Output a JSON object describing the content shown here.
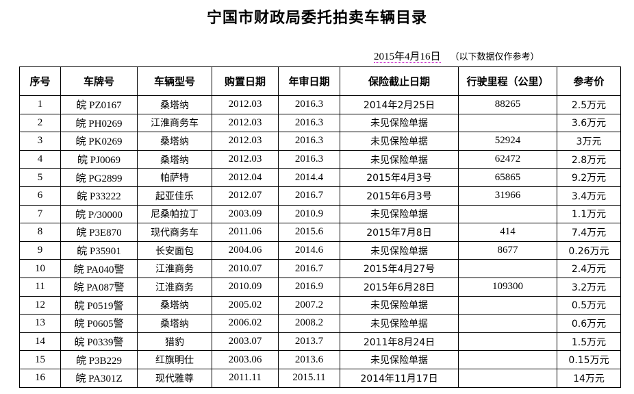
{
  "title": "宁国市财政局委托拍卖车辆目录",
  "date": "2015年4月16日",
  "note": "（以下数据仅作参考）",
  "columns": [
    "序号",
    "车牌号",
    "车辆型号",
    "购置日期",
    "年审日期",
    "保险截止日期",
    "行驶里程（公里）",
    "参考价"
  ],
  "rows": [
    [
      "1",
      "皖 PZ0167",
      "桑塔纳",
      "2012.03",
      "2016.3",
      "2014年2月25日",
      "88265",
      "2.5万元"
    ],
    [
      "2",
      "皖 PH0269",
      "江淮商务车",
      "2012.03",
      "2016.3",
      "未见保险单据",
      "",
      "3.6万元"
    ],
    [
      "3",
      "皖 PK0269",
      "桑塔纳",
      "2012.03",
      "2016.3",
      "未见保险单据",
      "52924",
      "3万元"
    ],
    [
      "4",
      "皖 PJ0069",
      "桑塔纳",
      "2012.03",
      "2016.3",
      "未见保险单据",
      "62472",
      "2.8万元"
    ],
    [
      "5",
      "皖 PG2899",
      "帕萨特",
      "2012.04",
      "2014.4",
      "2015年4月3号",
      "65865",
      "9.2万元"
    ],
    [
      "6",
      "皖 P33222",
      "起亚佳乐",
      "2012.07",
      "2016.7",
      "2015年6月3号",
      "31966",
      "3.4万元"
    ],
    [
      "7",
      "皖 P/30000",
      "尼桑帕拉丁",
      "2003.09",
      "2010.9",
      "未见保险单据",
      "",
      "1.1万元"
    ],
    [
      "8",
      "皖 P3E870",
      "现代商务车",
      "2011.06",
      "2015.6",
      "2015年7月8日",
      "414",
      "7.4万元"
    ],
    [
      "9",
      "皖 P35901",
      "长安面包",
      "2004.06",
      "2014.6",
      "未见保险单据",
      "8677",
      "0.26万元"
    ],
    [
      "10",
      "皖 PA040警",
      "江淮商务",
      "2010.07",
      "2016.7",
      "2015年4月27号",
      "",
      "2.4万元"
    ],
    [
      "11",
      "皖 PA087警",
      "江淮商务",
      "2010.09",
      "2016.9",
      "2015年6月28日",
      "109300",
      "3.2万元"
    ],
    [
      "12",
      "皖 P0519警",
      "桑塔纳",
      "2005.02",
      "2007.2",
      "未见保险单据",
      "",
      "0.5万元"
    ],
    [
      "13",
      "皖 P0605警",
      "桑塔纳",
      "2006.02",
      "2008.2",
      "未见保险单据",
      "",
      "0.6万元"
    ],
    [
      "14",
      "皖 P0339警",
      "猎豹",
      "2003.07",
      "2013.7",
      "2011年8月24日",
      "",
      "1.5万元"
    ],
    [
      "15",
      "皖 P3B229",
      "红旗明仕",
      "2003.06",
      "2013.6",
      "未见保险单据",
      "",
      "0.15万元"
    ],
    [
      "16",
      "皖 PA301Z",
      "现代雅尊",
      "2011.11",
      "2015.11",
      "2014年11月17日",
      "",
      "14万元"
    ]
  ]
}
